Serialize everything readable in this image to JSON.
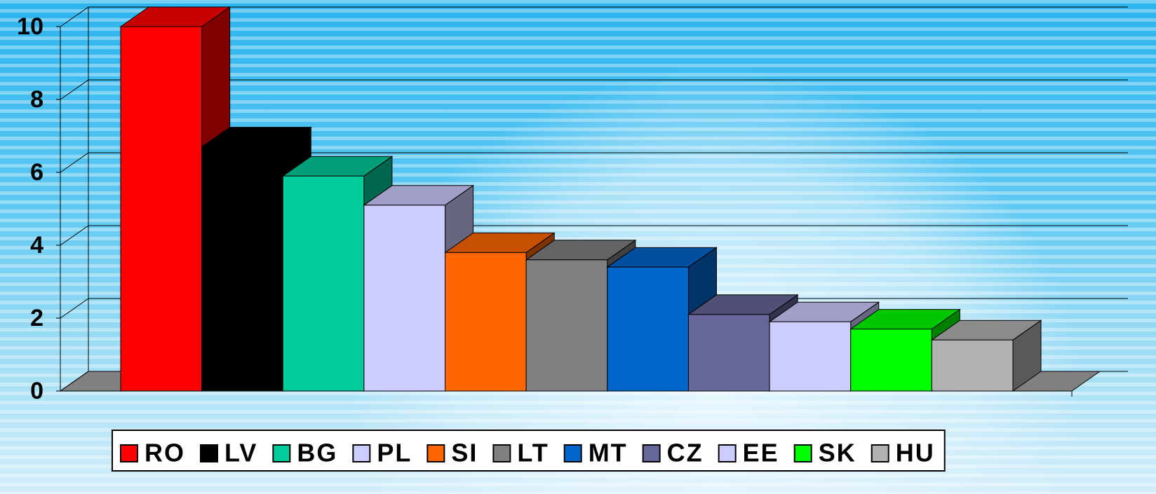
{
  "chart_data": {
    "type": "bar3d",
    "categories": [
      "RO",
      "LV",
      "BG",
      "PL",
      "SI",
      "LT",
      "MT",
      "CZ",
      "EE",
      "SK",
      "HU"
    ],
    "values": [
      10.0,
      6.7,
      5.9,
      5.1,
      3.8,
      3.6,
      3.4,
      2.1,
      1.9,
      1.7,
      1.4
    ],
    "colors": [
      "#ff0000",
      "#000000",
      "#00cc99",
      "#ccccff",
      "#ff6600",
      "#808080",
      "#0066cc",
      "#666699",
      "#ccccff",
      "#00ff00",
      "#b2b2b2"
    ],
    "ylim": [
      0,
      10
    ],
    "yticks": [
      0,
      2,
      4,
      6,
      8,
      10
    ],
    "grid": true,
    "legend": "bottom"
  }
}
